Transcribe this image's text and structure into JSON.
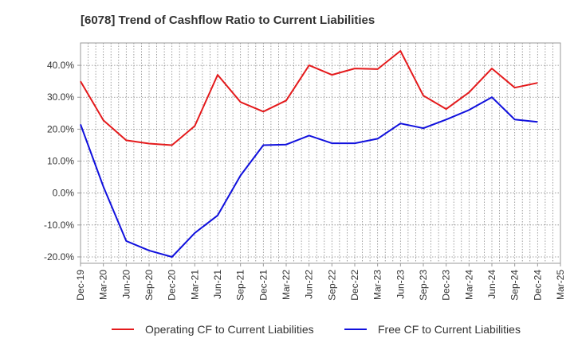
{
  "chart_data": {
    "type": "line",
    "title": "[6078]  Trend of Cashflow Ratio to Current Liabilities",
    "xlabel": "",
    "ylabel": "",
    "x_tick_labels": [
      "Dec-19",
      "Mar-20",
      "Jun-20",
      "Sep-20",
      "Dec-20",
      "Mar-21",
      "Jun-21",
      "Sep-21",
      "Dec-21",
      "Mar-22",
      "Jun-22",
      "Sep-22",
      "Dec-22",
      "Mar-23",
      "Jun-23",
      "Sep-23",
      "Dec-23",
      "Mar-24",
      "Jun-24",
      "Sep-24",
      "Dec-24",
      "Mar-25"
    ],
    "y_tick_labels": [
      "40.0%",
      "30.0%",
      "20.0%",
      "10.0%",
      "0.0%",
      "-10.0%",
      "-20.0%"
    ],
    "y_tick_values": [
      40,
      30,
      20,
      10,
      0,
      -10,
      -20
    ],
    "ylim": [
      -22,
      47
    ],
    "grid": true,
    "legend_position": "bottom",
    "x": [
      "Dec-19",
      "Jan-20",
      "Feb-20",
      "Mar-20",
      "Apr-20",
      "May-20",
      "Jun-20",
      "Jul-20",
      "Aug-20",
      "Sep-20",
      "Oct-20",
      "Nov-20",
      "Dec-20",
      "Jan-21",
      "Feb-21",
      "Mar-21",
      "Apr-21",
      "May-21",
      "Jun-21",
      "Jul-21",
      "Aug-21",
      "Sep-21",
      "Oct-21",
      "Nov-21",
      "Dec-21",
      "Jan-22",
      "Feb-22",
      "Mar-22",
      "Apr-22",
      "May-22",
      "Jun-22",
      "Jul-22",
      "Aug-22",
      "Sep-22",
      "Oct-22",
      "Nov-22",
      "Dec-22",
      "Jan-23",
      "Feb-23",
      "Mar-23",
      "Apr-23",
      "May-23",
      "Jun-23",
      "Jul-23",
      "Aug-23",
      "Sep-23",
      "Oct-23",
      "Nov-23",
      "Dec-23",
      "Jan-24",
      "Feb-24",
      "Mar-24",
      "Apr-24",
      "May-24",
      "Jun-24",
      "Jul-24",
      "Aug-24",
      "Sep-24",
      "Oct-24",
      "Nov-24",
      "Dec-24",
      "Jan-25",
      "Feb-25",
      "Mar-25"
    ],
    "series": [
      {
        "name": "Operating CF to Current Liabilities",
        "color": "#e41a1c",
        "values": [
          35,
          null,
          null,
          22.8,
          null,
          null,
          16.5,
          null,
          null,
          15.5,
          null,
          null,
          15.0,
          null,
          null,
          21.0,
          null,
          null,
          37.0,
          null,
          null,
          28.5,
          null,
          null,
          25.5,
          null,
          null,
          29.0,
          null,
          null,
          40.0,
          null,
          null,
          37.0,
          null,
          null,
          39.0,
          null,
          null,
          38.8,
          null,
          null,
          44.5,
          null,
          null,
          30.5,
          null,
          null,
          26.3,
          null,
          null,
          31.5,
          null,
          null,
          39.0,
          null,
          null,
          33.0,
          null,
          null,
          34.5,
          null,
          null,
          null
        ]
      },
      {
        "name": "Free CF to Current Liabilities",
        "color": "#1010dd",
        "values": [
          21.5,
          null,
          null,
          2.0,
          null,
          null,
          -15.0,
          null,
          null,
          -18.0,
          null,
          null,
          -20.0,
          null,
          null,
          -12.5,
          null,
          null,
          -7.0,
          null,
          null,
          5.5,
          null,
          null,
          15.0,
          null,
          null,
          15.2,
          null,
          null,
          18.0,
          null,
          null,
          15.6,
          null,
          null,
          15.6,
          null,
          null,
          17.0,
          null,
          null,
          21.8,
          null,
          null,
          20.3,
          null,
          null,
          23.0,
          null,
          null,
          26.0,
          null,
          null,
          30.0,
          null,
          null,
          23.0,
          null,
          null,
          22.3,
          null,
          null,
          null
        ]
      }
    ]
  }
}
